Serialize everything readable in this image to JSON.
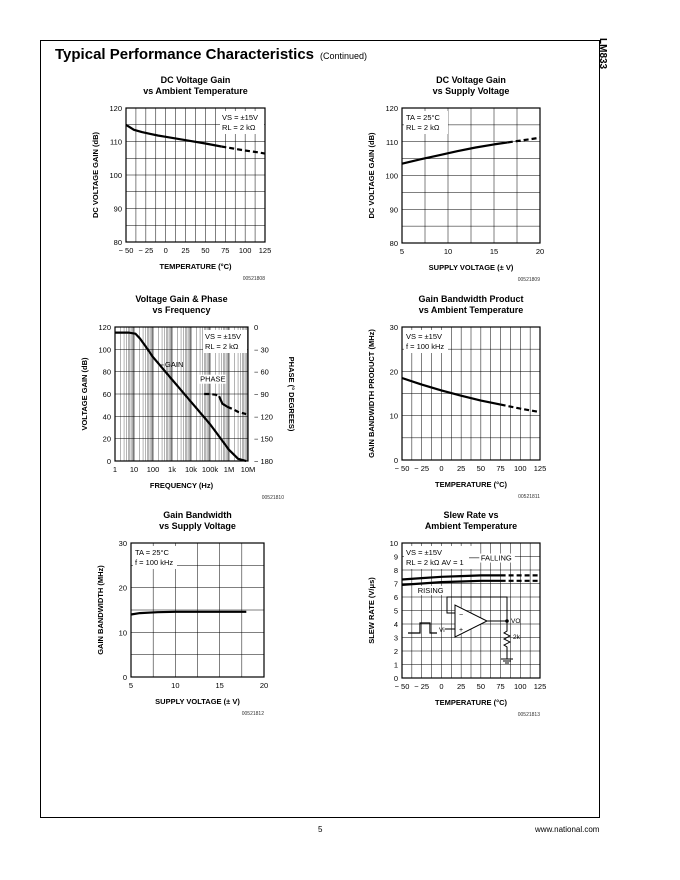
{
  "page": {
    "title": "Typical Performance Characteristics",
    "continued": "(Continued)",
    "side_label": "LM833",
    "page_number": "5",
    "website": "www.national.com"
  },
  "chart_data": [
    {
      "id": "c1",
      "type": "line",
      "title": "DC Voltage Gain",
      "subtitle": "vs Ambient Temperature",
      "xlabel": "TEMPERATURE (°C)",
      "ylabel": "DC VOLTAGE GAIN (dB)",
      "xlim": [
        -50,
        125
      ],
      "ylim": [
        80,
        120
      ],
      "xticks": [
        -50,
        -25,
        0,
        25,
        50,
        75,
        100,
        125
      ],
      "xtick_labels": [
        "− 50",
        "− 25",
        "0",
        "25",
        "50",
        "75",
        "100",
        "125"
      ],
      "yticks": [
        80,
        90,
        100,
        110,
        120
      ],
      "ytick_labels": [
        "80",
        "90",
        "100",
        "110",
        "120"
      ],
      "grid": true,
      "annotation": [
        "VS = ±15V",
        "RL = 2 kΩ"
      ],
      "ref": "00521808",
      "series": [
        {
          "x": [
            -50,
            -40,
            -30,
            -20,
            -10,
            0,
            15,
            30,
            50,
            70
          ],
          "y": [
            115,
            113.5,
            112.8,
            112.3,
            111.8,
            111.4,
            110.8,
            110.2,
            109.4,
            108.5
          ],
          "dashed": false
        },
        {
          "x": [
            70,
            85,
            100,
            115,
            125
          ],
          "y": [
            108.5,
            107.9,
            107.3,
            106.8,
            106.4
          ],
          "dashed": true
        }
      ]
    },
    {
      "id": "c2",
      "type": "line",
      "title": "DC Voltage Gain",
      "subtitle": "vs Supply Voltage",
      "xlabel": "SUPPLY VOLTAGE (± V)",
      "ylabel": "DC VOLTAGE GAIN (dB)",
      "xlim": [
        5,
        20
      ],
      "ylim": [
        80,
        120
      ],
      "xticks": [
        5,
        10,
        15,
        20
      ],
      "xtick_labels": [
        "5",
        "10",
        "15",
        "20"
      ],
      "yticks": [
        80,
        90,
        100,
        110,
        120
      ],
      "ytick_labels": [
        "80",
        "90",
        "100",
        "110",
        "120"
      ],
      "grid": true,
      "annotation": [
        "TA = 25°C",
        "RL = 2 kΩ"
      ],
      "ref": "00521809",
      "series": [
        {
          "x": [
            5,
            7,
            9,
            11,
            13,
            15,
            16.5
          ],
          "y": [
            103.5,
            104.8,
            106,
            107.2,
            108.3,
            109.2,
            109.8
          ],
          "dashed": false
        },
        {
          "x": [
            16.5,
            18,
            19,
            20
          ],
          "y": [
            109.8,
            110.4,
            110.8,
            111.2
          ],
          "dashed": true
        }
      ]
    },
    {
      "id": "c3",
      "type": "line",
      "title": "Voltage Gain & Phase",
      "subtitle": "vs Frequency",
      "xlabel": "FREQUENCY (Hz)",
      "ylabel": "VOLTAGE GAIN (dB)",
      "ylabel_right": "PHASE (° DEGREES)",
      "xscale": "log",
      "xlim": [
        1,
        10000000
      ],
      "ylim": [
        0,
        120
      ],
      "xticks": [
        1,
        10,
        100,
        1000,
        10000,
        100000,
        1000000,
        10000000
      ],
      "xtick_labels": [
        "1",
        "10",
        "100",
        "1k",
        "10k",
        "100k",
        "1M",
        "10M"
      ],
      "yticks": [
        0,
        20,
        40,
        60,
        80,
        100,
        120
      ],
      "ytick_labels": [
        "0",
        "20",
        "40",
        "60",
        "80",
        "100",
        "120"
      ],
      "yticks_right": [
        0,
        -30,
        -60,
        -90,
        -120,
        -150,
        -180
      ],
      "ytick_labels_right": [
        "0",
        "− 30",
        "− 60",
        "− 90",
        "− 120",
        "− 150",
        "− 180"
      ],
      "ylim_right": [
        -180,
        0
      ],
      "grid": true,
      "annotation": [
        "VS = ±15V",
        "RL = 2 kΩ"
      ],
      "labels": [
        "GAIN",
        "PHASE"
      ],
      "ref": "00521810",
      "series": [
        {
          "name": "GAIN",
          "x": [
            1,
            5,
            12,
            20,
            40,
            100,
            1000,
            10000,
            100000,
            300000,
            1000000,
            3000000,
            8000000
          ],
          "y": [
            115,
            115,
            114,
            110,
            103,
            93,
            73,
            53,
            33,
            22,
            10,
            2,
            0
          ],
          "dashed": false
        },
        {
          "name": "PHASE",
          "axis": "right",
          "x": [
            50000,
            100000,
            200000,
            300000
          ],
          "y": [
            -90,
            -90,
            -91,
            -93
          ],
          "dashed": true
        },
        {
          "name": "PHASE",
          "axis": "right",
          "x": [
            300000,
            450000,
            800000
          ],
          "y": [
            -93,
            -103,
            -107
          ],
          "dashed": false
        },
        {
          "name": "PHASE",
          "axis": "right",
          "x": [
            800000,
            1500000,
            3000000,
            8000000
          ],
          "y": [
            -107,
            -110,
            -114,
            -117
          ],
          "dashed": true
        }
      ]
    },
    {
      "id": "c4",
      "type": "line",
      "title": "Gain Bandwidth Product",
      "subtitle": "vs Ambient Temperature",
      "xlabel": "TEMPERATURE (°C)",
      "ylabel": "GAIN BANDWIDTH PRODUCT (MHz)",
      "xlim": [
        -50,
        125
      ],
      "ylim": [
        0,
        30
      ],
      "xticks": [
        -50,
        -25,
        0,
        25,
        50,
        75,
        100,
        125
      ],
      "xtick_labels": [
        "− 50",
        "− 25",
        "0",
        "25",
        "50",
        "75",
        "100",
        "125"
      ],
      "yticks": [
        0,
        10,
        20,
        30
      ],
      "ytick_labels": [
        "0",
        "10",
        "20",
        "30"
      ],
      "grid": true,
      "annotation": [
        "VS = ±15V",
        "f = 100 kHz"
      ],
      "ref": "00521811",
      "series": [
        {
          "x": [
            -50,
            -25,
            0,
            25,
            50,
            75
          ],
          "y": [
            18.5,
            17,
            15.7,
            14.5,
            13.4,
            12.5
          ],
          "dashed": false
        },
        {
          "x": [
            75,
            100,
            125
          ],
          "y": [
            12.5,
            11.6,
            10.8
          ],
          "dashed": true
        }
      ]
    },
    {
      "id": "c5",
      "type": "line",
      "title": "Gain Bandwidth",
      "subtitle": "vs Supply Voltage",
      "xlabel": "SUPPLY VOLTAGE (± V)",
      "ylabel": "GAIN BANDWIDTH (MHz)",
      "xlim": [
        5,
        20
      ],
      "ylim": [
        0,
        30
      ],
      "xticks": [
        5,
        10,
        15,
        20
      ],
      "xtick_labels": [
        "5",
        "10",
        "15",
        "20"
      ],
      "yticks": [
        0,
        10,
        20,
        30
      ],
      "ytick_labels": [
        "0",
        "10",
        "20",
        "30"
      ],
      "grid": true,
      "annotation": [
        "TA = 25°C",
        "f = 100 kHz"
      ],
      "ref": "00521812",
      "series": [
        {
          "x": [
            5,
            6,
            8,
            10,
            12,
            15,
            18
          ],
          "y": [
            14,
            14.3,
            14.5,
            14.6,
            14.6,
            14.6,
            14.6
          ],
          "dashed": false
        }
      ]
    },
    {
      "id": "c6",
      "type": "line",
      "title": "Slew Rate vs",
      "subtitle": "Ambient Temperature",
      "xlabel": "TEMPERATURE (°C)",
      "ylabel": "SLEW RATE (V/μs)",
      "xlim": [
        -50,
        125
      ],
      "ylim": [
        0,
        10
      ],
      "xticks": [
        -50,
        -25,
        0,
        25,
        50,
        75,
        100,
        125
      ],
      "xtick_labels": [
        "− 50",
        "− 25",
        "0",
        "25",
        "50",
        "75",
        "100",
        "125"
      ],
      "yticks": [
        0,
        1,
        2,
        3,
        4,
        5,
        6,
        7,
        8,
        9,
        10
      ],
      "ytick_labels": [
        "0",
        "1",
        "2",
        "3",
        "4",
        "5",
        "6",
        "7",
        "8",
        "9",
        "10"
      ],
      "grid": true,
      "annotation": [
        "VS = ±15V",
        "RL = 2 kΩ AV = 1"
      ],
      "labels": [
        "FALLING",
        "RISING"
      ],
      "circuit_labels": [
        "Vi",
        "VO",
        "2k",
        "+",
        "−"
      ],
      "ref": "00521813",
      "series": [
        {
          "name": "FALLING",
          "x": [
            -50,
            -25,
            0,
            25,
            50,
            75
          ],
          "y": [
            7.3,
            7.4,
            7.5,
            7.55,
            7.6,
            7.6
          ],
          "dashed": false
        },
        {
          "name": "FALLING",
          "x": [
            75,
            100,
            125
          ],
          "y": [
            7.6,
            7.6,
            7.6
          ],
          "dashed": true
        },
        {
          "name": "RISING",
          "x": [
            -50,
            -25,
            0,
            25,
            50,
            75
          ],
          "y": [
            6.9,
            7.0,
            7.1,
            7.15,
            7.2,
            7.2
          ],
          "dashed": false
        },
        {
          "name": "RISING",
          "x": [
            75,
            100,
            125
          ],
          "y": [
            7.2,
            7.2,
            7.2
          ],
          "dashed": true
        }
      ]
    }
  ]
}
